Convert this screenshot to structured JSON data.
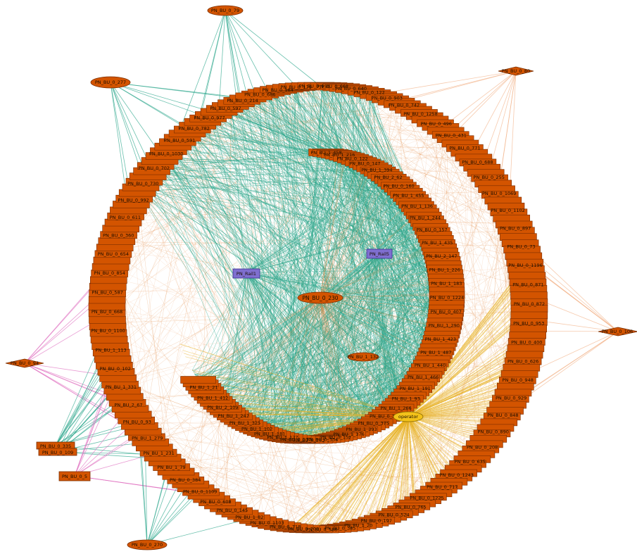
{
  "graph": {
    "colors": {
      "node_fill": "#d35400",
      "node_stroke": "#7a2e00",
      "rail_fill": "#7f6fd0",
      "rail_stroke": "#3d2f8f",
      "edge_teal": "#2aa58a",
      "edge_orange": "#e0833a",
      "edge_peach": "#f2b48a",
      "edge_gold": "#e8b020",
      "edge_pink": "#e070c0",
      "operator_fill": "#f3c21a"
    },
    "center_node": "PN_BU_0_230",
    "operator": "operator",
    "rails": [
      "PN_Rail1",
      "PN_Rail5"
    ],
    "mid_node": "PN_BU_1_132",
    "outer_satellites": [
      "PN_BU_0_79",
      "PN_BU_0_277",
      "PN_BU_0_80",
      "PN_BU_0_106",
      "PN_BU_0_94",
      "PN_BU_0_335",
      "PN_BU_0_109",
      "PN_BU_0_5",
      "PN_BU_0_270"
    ],
    "outer_ring_labels": [
      "PN_BU_0_686",
      "PN_BU_0_184",
      "PN_BU_0_179",
      "PN_BU_0_995",
      "PN_BU_0_668",
      "PN_BU_0_640",
      "PN_BU_0_122",
      "PN_BU_0_903",
      "PN_BU_0_742",
      "PN_BU_0_1258",
      "PN_BU_0_496",
      "PN_BU_0_431",
      "PN_BU_0_771",
      "PN_BU_0_688",
      "PN_BU_0_255",
      "PN_BU_0_1069",
      "PN_BU_0_1102",
      "PN_BU_0_897",
      "PN_BU_0_73",
      "PN_BU_0_1196",
      "PN_BU_0_871",
      "PN_BU_0_872",
      "PN_BU_0_953",
      "PN_BU_0_400",
      "PN_BU_0_626",
      "PN_BU_0_948",
      "PN_BU_0_929",
      "PN_BU_0_848",
      "PN_BU_0_890",
      "PN_BU_0_208",
      "PN_BU_0_635",
      "PN_BU_0_1243",
      "PN_BU_0_717",
      "PN_BU_0_1225",
      "PN_BU_0_765",
      "PN_BU_0_524",
      "PN_BU_0_197",
      "PN_BU_1_20",
      "PN_BU_0_385",
      "PN_BU_0_588",
      "PN_BU_0_208",
      "PN_BU_0_718",
      "PN_BU_0_1103",
      "PN_BU_1_82",
      "PN_BU_0_145",
      "PN_BU_0_608",
      "PN_BU_0_1109",
      "PN_BU_0_384",
      "PN_BU_1_79",
      "PN_BU_1_231",
      "PN_BU_1_279",
      "PN_BU_0_93",
      "PN_BU_2_67",
      "PN_BU_1_331",
      "PN_BU_0_102",
      "PN_BU_1_113",
      "PN_BU_0_1100",
      "PN_BU_0_668",
      "PN_BU_0_587",
      "PN_BU_0_854",
      "PN_BU_0_654",
      "PN_BU_0_360",
      "PN_BU_0_611",
      "PN_BU_0_992",
      "PN_BU_0_730",
      "PN_BU_0_702",
      "PN_BU_0_1030",
      "PN_BU_0_591",
      "PN_BU_0_782",
      "PN_BU_0_977",
      "PN_BU_0_597",
      "PN_BU_0_214"
    ],
    "inner_ring_labels": [
      "PN_BU_1_458",
      "PN_BU_1_216",
      "PN_BU_0_122",
      "PN_BU_0_147",
      "PN_BU_1_394",
      "PN_BU_2_62",
      "PN_BU_0_160",
      "PN_BU_1_455",
      "PN_BU_1_136",
      "PN_BU_1_244",
      "PN_BU_0_157",
      "PN_BU_1_435",
      "PN_BU_2_147",
      "PN_BU_1_226",
      "PN_BU_1_183",
      "PN_BU_0_1224",
      "PN_BU_0_407",
      "PN_BU_1_290",
      "PN_BU_1_423",
      "PN_BU_1_487",
      "PN_BU_1_440",
      "PN_BU_1_466",
      "PN_BU_1_191",
      "PN_BU_1_93",
      "PN_BU_1_266",
      "PN_BU_0_318",
      "PN_BU_0_375",
      "PN_BU_1_393",
      "PN_BU_1_376",
      "PN_BU_0_152",
      "PN_BU_0_334",
      "PN_BU_0_243",
      "PN_BU_0_132",
      "PN_BU_1_127",
      "PN_BU_1_181",
      "PN_BU_1_102",
      "PN_BU_1_325",
      "PN_BU_1_247",
      "PN_BU_2_109",
      "PN_BU_1_412",
      "PN_BU_1_21"
    ]
  }
}
